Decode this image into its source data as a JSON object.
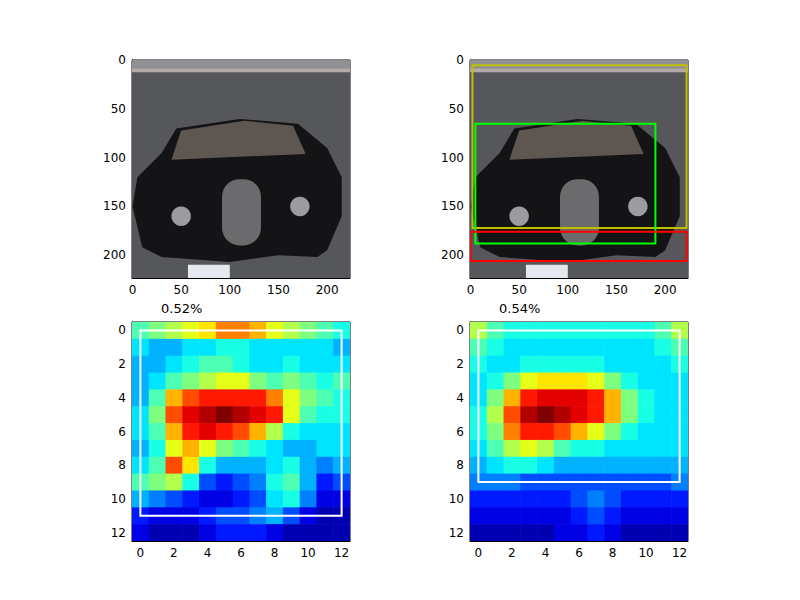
{
  "chart_data": [
    {
      "type": "image",
      "xlim": [
        -0.5,
        223.5
      ],
      "ylim": [
        -0.5,
        223.5
      ],
      "xticks": [
        0,
        50,
        100,
        150,
        200
      ],
      "yticks": [
        0,
        50,
        100,
        150,
        200
      ]
    },
    {
      "type": "image",
      "xlim": [
        -0.5,
        223.5
      ],
      "ylim": [
        -0.5,
        223.5
      ],
      "xticks": [
        0,
        50,
        100,
        150,
        200
      ],
      "yticks": [
        0,
        50,
        100,
        150,
        200
      ],
      "boxes": [
        {
          "color": "#bfbf00",
          "values": [
            2,
            5,
            222,
            172
          ]
        },
        {
          "color": "#00ff00",
          "values": [
            5,
            65,
            190,
            188
          ]
        },
        {
          "color": "#ff0000",
          "values": [
            0,
            176,
            222,
            206
          ]
        }
      ]
    },
    {
      "type": "heatmap",
      "title": "0.52%",
      "xlim": [
        -0.5,
        12.5
      ],
      "ylim": [
        -0.5,
        12.5
      ],
      "xticks": [
        0,
        2,
        4,
        6,
        8,
        10,
        12
      ],
      "yticks": [
        0,
        2,
        4,
        6,
        8,
        10,
        12
      ],
      "color_range": [
        0,
        1
      ],
      "cells": [
        [
          0.45,
          0.5,
          0.55,
          0.6,
          0.65,
          0.75,
          0.75,
          0.7,
          0.6,
          0.55,
          0.5,
          0.45,
          0.4
        ],
        [
          0.35,
          0.3,
          0.3,
          0.35,
          0.35,
          0.4,
          0.4,
          0.35,
          0.35,
          0.35,
          0.35,
          0.35,
          0.3
        ],
        [
          0.3,
          0.3,
          0.35,
          0.4,
          0.45,
          0.45,
          0.4,
          0.35,
          0.35,
          0.4,
          0.35,
          0.35,
          0.35
        ],
        [
          0.3,
          0.35,
          0.45,
          0.5,
          0.55,
          0.6,
          0.6,
          0.5,
          0.45,
          0.5,
          0.45,
          0.4,
          0.45
        ],
        [
          0.3,
          0.45,
          0.7,
          0.8,
          0.85,
          0.85,
          0.85,
          0.85,
          0.75,
          0.6,
          0.5,
          0.45,
          0.4
        ],
        [
          0.35,
          0.5,
          0.8,
          0.9,
          0.95,
          1.0,
          0.95,
          0.9,
          0.85,
          0.6,
          0.45,
          0.4,
          0.4
        ],
        [
          0.35,
          0.45,
          0.7,
          0.85,
          0.9,
          0.85,
          0.8,
          0.7,
          0.55,
          0.4,
          0.35,
          0.35,
          0.35
        ],
        [
          0.3,
          0.4,
          0.6,
          0.7,
          0.6,
          0.5,
          0.45,
          0.4,
          0.35,
          0.3,
          0.3,
          0.35,
          0.35
        ],
        [
          0.35,
          0.45,
          0.8,
          0.65,
          0.4,
          0.3,
          0.3,
          0.3,
          0.35,
          0.4,
          0.3,
          0.25,
          0.3
        ],
        [
          0.45,
          0.5,
          0.55,
          0.4,
          0.2,
          0.15,
          0.2,
          0.25,
          0.4,
          0.45,
          0.3,
          0.15,
          0.2
        ],
        [
          0.3,
          0.25,
          0.2,
          0.15,
          0.1,
          0.1,
          0.15,
          0.2,
          0.35,
          0.4,
          0.25,
          0.1,
          0.1
        ],
        [
          0.15,
          0.1,
          0.1,
          0.1,
          0.15,
          0.2,
          0.2,
          0.25,
          0.3,
          0.2,
          0.1,
          0.05,
          0.05
        ],
        [
          0.1,
          0.05,
          0.05,
          0.05,
          0.1,
          0.15,
          0.15,
          0.15,
          0.1,
          0.05,
          0.05,
          0.05,
          0.05
        ]
      ],
      "boxes": [
        {
          "color": "#ffffff",
          "values": [
            0,
            0,
            12,
            11
          ]
        }
      ]
    },
    {
      "type": "heatmap",
      "title": "0.54%",
      "xlim": [
        -0.5,
        12.5
      ],
      "ylim": [
        -0.5,
        12.5
      ],
      "xticks": [
        0,
        2,
        4,
        6,
        8,
        10,
        12
      ],
      "yticks": [
        0,
        2,
        4,
        6,
        8,
        10,
        12
      ],
      "color_range": [
        0,
        1
      ],
      "cells": [
        [
          0.55,
          0.45,
          0.4,
          0.4,
          0.4,
          0.4,
          0.4,
          0.4,
          0.4,
          0.4,
          0.4,
          0.45,
          0.55
        ],
        [
          0.45,
          0.4,
          0.35,
          0.35,
          0.35,
          0.35,
          0.35,
          0.35,
          0.35,
          0.35,
          0.35,
          0.4,
          0.45
        ],
        [
          0.4,
          0.35,
          0.35,
          0.4,
          0.4,
          0.4,
          0.4,
          0.4,
          0.35,
          0.35,
          0.35,
          0.35,
          0.4
        ],
        [
          0.35,
          0.4,
          0.5,
          0.6,
          0.65,
          0.65,
          0.65,
          0.6,
          0.5,
          0.4,
          0.35,
          0.35,
          0.35
        ],
        [
          0.35,
          0.5,
          0.7,
          0.85,
          0.9,
          0.9,
          0.9,
          0.85,
          0.7,
          0.5,
          0.4,
          0.35,
          0.35
        ],
        [
          0.4,
          0.55,
          0.8,
          0.95,
          1.0,
          0.95,
          0.9,
          0.85,
          0.7,
          0.5,
          0.4,
          0.35,
          0.35
        ],
        [
          0.4,
          0.5,
          0.75,
          0.85,
          0.85,
          0.8,
          0.7,
          0.6,
          0.5,
          0.4,
          0.35,
          0.35,
          0.35
        ],
        [
          0.35,
          0.45,
          0.55,
          0.6,
          0.55,
          0.45,
          0.4,
          0.4,
          0.35,
          0.35,
          0.35,
          0.35,
          0.35
        ],
        [
          0.3,
          0.35,
          0.4,
          0.4,
          0.35,
          0.3,
          0.3,
          0.3,
          0.3,
          0.3,
          0.3,
          0.3,
          0.3
        ],
        [
          0.25,
          0.25,
          0.25,
          0.2,
          0.2,
          0.2,
          0.2,
          0.2,
          0.2,
          0.2,
          0.2,
          0.2,
          0.25
        ],
        [
          0.15,
          0.15,
          0.15,
          0.15,
          0.15,
          0.15,
          0.2,
          0.25,
          0.2,
          0.15,
          0.15,
          0.15,
          0.15
        ],
        [
          0.1,
          0.1,
          0.1,
          0.1,
          0.1,
          0.1,
          0.15,
          0.2,
          0.15,
          0.1,
          0.1,
          0.1,
          0.1
        ],
        [
          0.05,
          0.05,
          0.05,
          0.05,
          0.05,
          0.1,
          0.1,
          0.15,
          0.1,
          0.05,
          0.05,
          0.05,
          0.05
        ]
      ],
      "boxes": [
        {
          "color": "#ffffff",
          "values": [
            0,
            0,
            12,
            9
          ]
        }
      ]
    }
  ]
}
